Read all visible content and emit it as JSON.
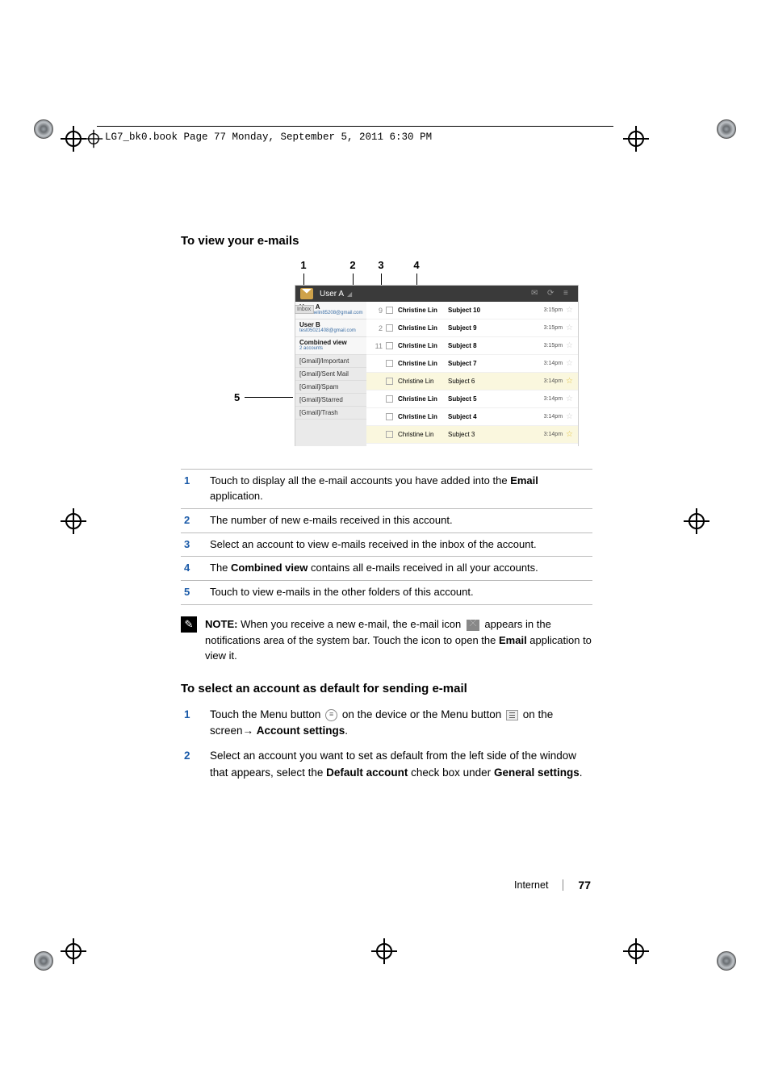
{
  "header_line": "LG7_bk0.book  Page 77  Monday, September 5, 2011  6:30 PM",
  "section1_title": "To view your e-mails",
  "callout_labels": {
    "c1": "1",
    "c2": "2",
    "c3": "3",
    "c4": "4",
    "c5": "5"
  },
  "shot": {
    "bar_user": "User A",
    "side_tags": {
      "inbox": "Inbox",
      "sent": "Sent",
      "gma1": "[Gma",
      "gma2": "[Gma"
    },
    "accounts": [
      {
        "name": "User A",
        "email": "christinelin85208@gmail.com",
        "count": "9"
      },
      {
        "name": "User B",
        "email": "test05021408@gmail.com",
        "count": "2"
      },
      {
        "name": "Combined view",
        "email": "2 accounts",
        "count": "11"
      }
    ],
    "folders": [
      "[Gmail]/Important",
      "[Gmail]/Sent Mail",
      "[Gmail]/Spam",
      "[Gmail]/Starred",
      "[Gmail]/Trash"
    ],
    "rows": [
      {
        "name": "Christine Lin",
        "subj": "Subject 10",
        "time": "3:15pm",
        "bold": true,
        "star": false,
        "count": "9"
      },
      {
        "name": "Christine Lin",
        "subj": "Subject 9",
        "time": "3:15pm",
        "bold": true,
        "star": false,
        "count": "2"
      },
      {
        "name": "Christine Lin",
        "subj": "Subject 8",
        "time": "3:15pm",
        "bold": true,
        "star": false,
        "count": "11"
      },
      {
        "name": "Christine Lin",
        "subj": "Subject 7",
        "time": "3:14pm",
        "bold": true,
        "star": false
      },
      {
        "name": "Christine Lin",
        "subj": "Subject 6",
        "time": "3:14pm",
        "bold": false,
        "star": true,
        "sel": true
      },
      {
        "name": "Christine Lin",
        "subj": "Subject 5",
        "time": "3:14pm",
        "bold": true,
        "star": false
      },
      {
        "name": "Christine Lin",
        "subj": "Subject 4",
        "time": "3:14pm",
        "bold": true,
        "star": false
      },
      {
        "name": "Christine Lin",
        "subj": "Subject 3",
        "time": "3:14pm",
        "bold": false,
        "star": true,
        "sel": true
      }
    ]
  },
  "legend": [
    {
      "n": "1",
      "html": "Touch to display all the e-mail accounts you have added into the <b>Email</b> application."
    },
    {
      "n": "2",
      "html": "The number of new e-mails received in this account."
    },
    {
      "n": "3",
      "html": "Select an account to view e-mails received in the inbox of the account."
    },
    {
      "n": "4",
      "html": "The <b>Combined view</b> contains all e-mails received in all your accounts."
    },
    {
      "n": "5",
      "html": "Touch to view e-mails in the other folders of this account."
    }
  ],
  "note": {
    "label": "NOTE:",
    "body_before": " When you receive a new e-mail, the e-mail icon ",
    "body_after": " appears in the notifications area of the system bar. Touch the icon to open the <b>Email</b> application to view it."
  },
  "section2_title": "To select an account as default for sending e-mail",
  "steps": [
    {
      "n": "1",
      "html": "Touch the Menu button <span class='menu-circle'>≡</span> on the device or the Menu button <span class='menu-lines'></span> on the screen→ <b>Account settings</b>."
    },
    {
      "n": "2",
      "html": "Select an account you want to set as default from the left side of the window that appears, select the <b>Default account</b> check box under <b>General settings</b>."
    }
  ],
  "footer": {
    "section": "Internet",
    "page": "77"
  },
  "colors": {
    "link_blue": "#1a5aa8",
    "rule_gray": "#bcbcbc",
    "shot_bg": "#f1f1f1"
  }
}
